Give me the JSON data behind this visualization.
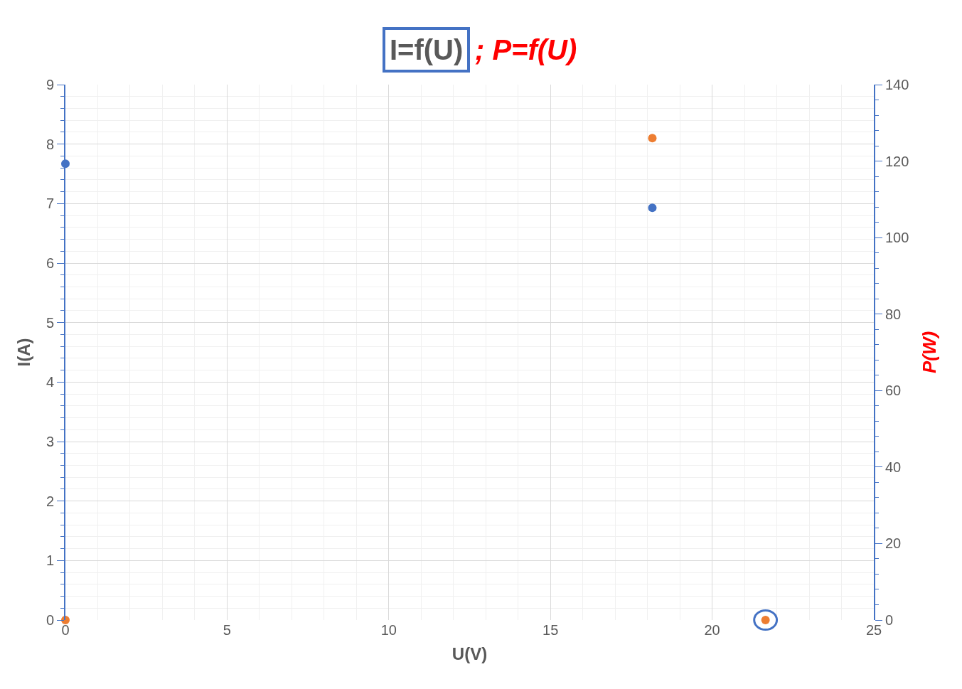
{
  "chart_data": {
    "type": "scatter",
    "title": "I=f(U)",
    "subtitle": "; P=f(U)",
    "xlabel": "U(V)",
    "ylabel": "I(A)",
    "y2label": "P(W)",
    "x": [
      0,
      18.15,
      21.65
    ],
    "series": [
      {
        "color": "#4472c4",
        "values": [
          7.67,
          6.93,
          null
        ]
      },
      {
        "color": "#ed7d31",
        "values": [
          0,
          126,
          0
        ],
        "axis": "y2"
      }
    ],
    "xlim": [
      0,
      25
    ],
    "xticks": [
      0,
      5,
      10,
      15,
      20,
      25
    ],
    "ylim": [
      0,
      9
    ],
    "yticks": [
      0,
      1,
      2,
      3,
      4,
      5,
      6,
      7,
      8,
      9
    ],
    "y2lim": [
      0,
      140
    ],
    "y2ticks": [
      0,
      20,
      40,
      60,
      80,
      100,
      120,
      140
    ],
    "grid": true,
    "marker": "circle"
  }
}
